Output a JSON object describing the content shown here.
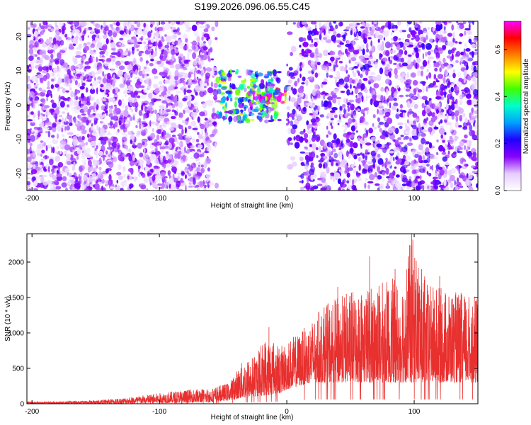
{
  "figure": {
    "title": "S199.2026.096.06.55.C45"
  },
  "chart_data": [
    {
      "type": "heatmap",
      "xlabel": "Height of straight line (km)",
      "ylabel": "Frequency (Hz)",
      "xlim": [
        -204,
        150
      ],
      "ylim": [
        -25,
        24.5
      ],
      "xticks": [
        -200,
        -100,
        0,
        100
      ],
      "yticks": [
        -20,
        -10,
        0,
        10,
        20
      ],
      "grid": false,
      "colorbar": {
        "label": "Normalized spectral amplitude",
        "range": [
          0,
          0.72
        ],
        "ticks": [
          0.0,
          0.2,
          0.4,
          0.6
        ],
        "colormap": [
          "#ffffff",
          "#e6ccff",
          "#8800ff",
          "#2000ff",
          "#00a0ff",
          "#00ffcc",
          "#40ff00",
          "#ffff00",
          "#ff8000",
          "#ff0000",
          "#ff00ff"
        ]
      },
      "features": [
        {
          "x_range": [
            -204,
            -140
          ],
          "freq_range": [
            -25,
            24.5
          ],
          "amplitude": 0.1
        },
        {
          "x_range": [
            -140,
            -55
          ],
          "freq_range": [
            -25,
            24.5
          ],
          "amplitude": 0.1
        },
        {
          "x_range": [
            -55,
            -5
          ],
          "freq_range": [
            -5,
            10
          ],
          "amplitude": 0.3
        },
        {
          "x_range": [
            -30,
            0
          ],
          "freq_range": [
            0,
            5
          ],
          "amplitude": 0.65
        },
        {
          "x_range": [
            0,
            150
          ],
          "freq_range": [
            -25,
            24.5
          ],
          "amplitude": 0.12
        }
      ]
    },
    {
      "type": "line",
      "xlabel": "Height of straight line (km)",
      "ylabel": "SNR (10 * v/v)",
      "xlim": [
        -204,
        150
      ],
      "ylim": [
        0,
        2400
      ],
      "xticks": [
        -200,
        -100,
        0,
        100
      ],
      "yticks": [
        0,
        500,
        1000,
        1500,
        2000
      ],
      "grid": false,
      "series": [
        {
          "color": "#e8302f",
          "envelope": {
            "x": [
              -204,
              -180,
              -150,
              -130,
              -100,
              -80,
              -60,
              -45,
              -35,
              -25,
              -15,
              -5,
              0,
              10,
              20,
              30,
              50,
              70,
              90,
              98,
              110,
              130,
              150
            ],
            "low": [
              5,
              5,
              5,
              5,
              10,
              15,
              20,
              50,
              80,
              100,
              120,
              150,
              200,
              250,
              300,
              300,
              300,
              300,
              300,
              300,
              300,
              300,
              300
            ],
            "high": [
              30,
              30,
              50,
              80,
              150,
              200,
              220,
              300,
              600,
              700,
              1000,
              800,
              900,
              1000,
              1200,
              1400,
              1600,
              1700,
              1800,
              2400,
              1700,
              1600,
              1500
            ]
          },
          "peaks": [
            [
              -14,
              1080
            ],
            [
              25,
              1300
            ],
            [
              40,
              1650
            ],
            [
              65,
              2080
            ],
            [
              85,
              1900
            ],
            [
              98,
              2400
            ],
            [
              108,
              1750
            ],
            [
              120,
              1800
            ],
            [
              148,
              1450
            ]
          ]
        }
      ]
    }
  ]
}
